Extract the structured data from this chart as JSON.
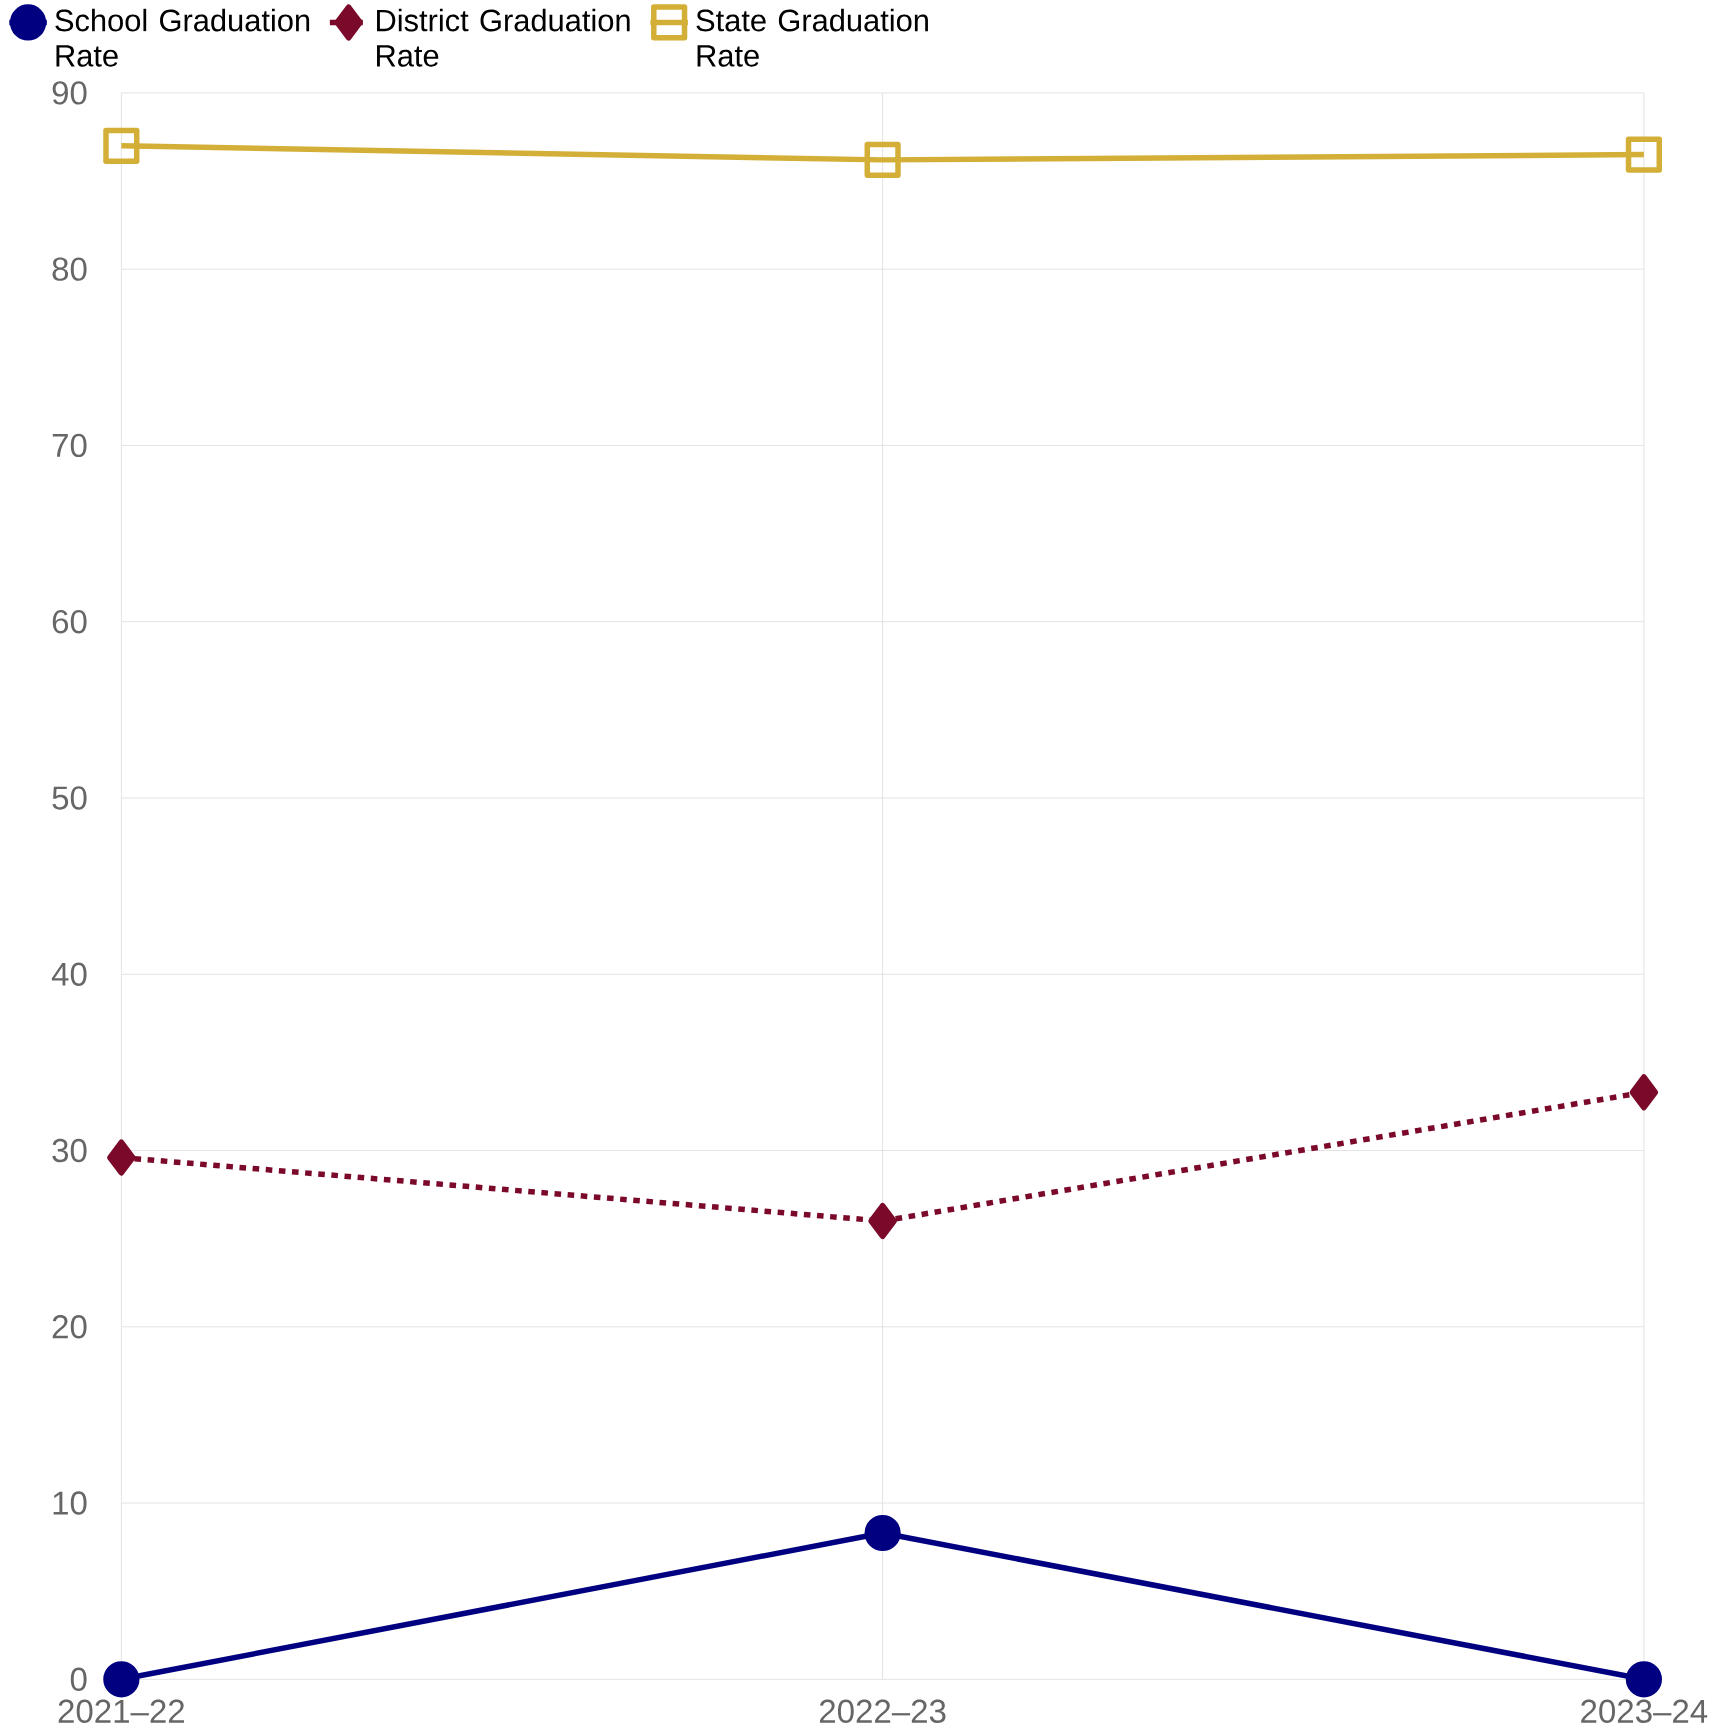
{
  "chart_data": {
    "type": "line",
    "categories": [
      "2021–22",
      "2022–23",
      "2023–24"
    ],
    "series": [
      {
        "name": "School Graduation Rate",
        "color": "#000080",
        "values": [
          0,
          8.3,
          0
        ],
        "marker": "circle",
        "line_style": "solid"
      },
      {
        "name": "District Graduation Rate",
        "color": "#7b0a2a",
        "values": [
          29.6,
          26.0,
          33.3
        ],
        "marker": "diamond",
        "line_style": "dashed"
      },
      {
        "name": "State Graduation Rate",
        "color": "#d4af37",
        "values": [
          87.0,
          86.2,
          86.5
        ],
        "marker": "square",
        "line_style": "solid"
      }
    ],
    "ylim": [
      0,
      90
    ],
    "yticks": [
      0,
      10,
      20,
      30,
      40,
      50,
      60,
      70,
      80,
      90
    ],
    "grid": true,
    "legend": "top"
  }
}
